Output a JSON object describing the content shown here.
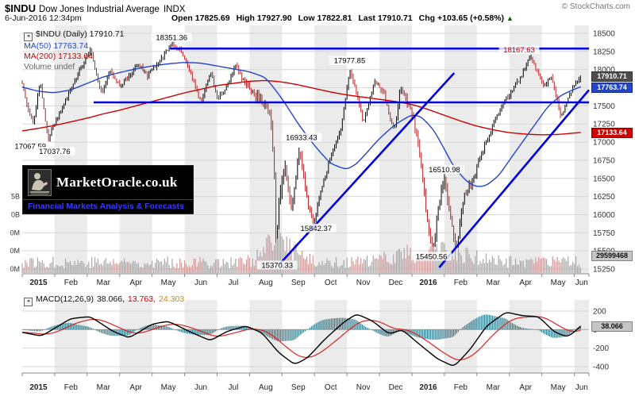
{
  "header": {
    "symbol": "$INDU",
    "name": "Dow Jones Industrial Average",
    "exchange": "INDX",
    "copyright": "© StockCharts.com",
    "datetime": "6-Jun-2016 12:34pm",
    "quote": {
      "open_label": "Open",
      "open": "17825.69",
      "high_label": "High",
      "high": "17927.90",
      "low_label": "Low",
      "low": "17822.81",
      "last_label": "Last",
      "last": "17910.71",
      "chg_label": "Chg",
      "chg": "+103.65 (+0.58%)",
      "arrow": "▲"
    }
  },
  "legend": {
    "main": "$INDU (Daily) 17910.71",
    "ma50": "MA(50) 17763.74",
    "ma200": "MA(200) 17133.64",
    "volume": "Volume undef"
  },
  "macd_legend": {
    "name": "MACD(12,26,9)",
    "macd_value": "38.066,",
    "signal_value": "13.763,",
    "hist_value": "24.303"
  },
  "value_boxes": {
    "price": "17910.71",
    "ma50": "17763.74",
    "ma200": "17133.64",
    "volume": "29599468",
    "macd": "38.066"
  },
  "logo": {
    "title": "MarketOracle.co.uk",
    "subtitle": "Financial Markets Analysis & Forecasts"
  },
  "chart_data": {
    "type": "candlestick",
    "symbol": "$INDU",
    "timeframe": "Daily",
    "x_axis_months": [
      "2015",
      "Feb",
      "Mar",
      "Apr",
      "May",
      "Jun",
      "Jul",
      "Aug",
      "Sep",
      "Oct",
      "Nov",
      "Dec",
      "2016",
      "Feb",
      "Mar",
      "Apr",
      "May",
      "Jun"
    ],
    "price_axis": {
      "ylim": [
        15250,
        18500
      ],
      "ticks": [
        18500,
        18250,
        18000,
        17750,
        17500,
        17250,
        17000,
        16750,
        16500,
        16250,
        16000,
        15750,
        15500,
        15250
      ]
    },
    "volume_axis_labels": [
      "5B",
      "0B",
      "0M",
      "0M",
      "0M"
    ],
    "price_anchors": [
      [
        0.0,
        17830
      ],
      [
        0.15,
        17500
      ],
      [
        0.35,
        17270
      ],
      [
        0.55,
        17850
      ],
      [
        0.8,
        17040
      ],
      [
        1.05,
        17300
      ],
      [
        1.5,
        17750
      ],
      [
        1.9,
        18100
      ],
      [
        2.1,
        18280
      ],
      [
        2.45,
        17660
      ],
      [
        2.7,
        18000
      ],
      [
        3.0,
        17776
      ],
      [
        3.3,
        17920
      ],
      [
        3.6,
        18080
      ],
      [
        3.85,
        17900
      ],
      [
        4.2,
        18100
      ],
      [
        4.61,
        18351
      ],
      [
        4.9,
        18250
      ],
      [
        5.15,
        18010
      ],
      [
        5.5,
        17550
      ],
      [
        5.8,
        17950
      ],
      [
        6.0,
        17620
      ],
      [
        6.3,
        17750
      ],
      [
        6.55,
        18080
      ],
      [
        6.8,
        17850
      ],
      [
        7.1,
        17690
      ],
      [
        7.4,
        17550
      ],
      [
        7.6,
        17450
      ],
      [
        7.7,
        17050
      ],
      [
        7.78,
        16400
      ],
      [
        7.82,
        15370
      ],
      [
        7.9,
        16280
      ],
      [
        8.1,
        16650
      ],
      [
        8.3,
        16050
      ],
      [
        8.55,
        16933
      ],
      [
        8.75,
        16250
      ],
      [
        8.97,
        15842
      ],
      [
        9.2,
        16350
      ],
      [
        9.5,
        16800
      ],
      [
        9.8,
        17150
      ],
      [
        10.08,
        17977
      ],
      [
        10.35,
        17600
      ],
      [
        10.5,
        17250
      ],
      [
        10.85,
        17850
      ],
      [
        11.1,
        17720
      ],
      [
        11.45,
        17150
      ],
      [
        11.65,
        17750
      ],
      [
        11.9,
        17500
      ],
      [
        12.05,
        17350
      ],
      [
        12.25,
        16800
      ],
      [
        12.45,
        16000
      ],
      [
        12.65,
        15450
      ],
      [
        12.8,
        16100
      ],
      [
        13.0,
        16510
      ],
      [
        13.2,
        15950
      ],
      [
        13.37,
        15520
      ],
      [
        13.6,
        16250
      ],
      [
        13.9,
        16516
      ],
      [
        14.2,
        16900
      ],
      [
        14.5,
        17250
      ],
      [
        14.8,
        17550
      ],
      [
        15.05,
        17685
      ],
      [
        15.35,
        17900
      ],
      [
        15.65,
        18167
      ],
      [
        15.9,
        17950
      ],
      [
        16.05,
        17773
      ],
      [
        16.3,
        17900
      ],
      [
        16.6,
        17331
      ],
      [
        16.85,
        17650
      ],
      [
        17.0,
        17787
      ],
      [
        17.2,
        17910.71
      ]
    ],
    "ma50_anchors": [
      [
        0,
        17760
      ],
      [
        0.5,
        17700
      ],
      [
        1,
        17680
      ],
      [
        1.5,
        17720
      ],
      [
        2,
        17810
      ],
      [
        2.5,
        17900
      ],
      [
        3,
        17960
      ],
      [
        3.5,
        18010
      ],
      [
        4,
        18050
      ],
      [
        4.5,
        18080
      ],
      [
        5,
        18100
      ],
      [
        5.5,
        18090
      ],
      [
        6,
        18050
      ],
      [
        6.5,
        18010
      ],
      [
        7,
        17970
      ],
      [
        7.5,
        17890
      ],
      [
        8,
        17600
      ],
      [
        8.5,
        17250
      ],
      [
        9,
        16950
      ],
      [
        9.5,
        16700
      ],
      [
        10,
        16620
      ],
      [
        10.3,
        16700
      ],
      [
        10.7,
        16900
      ],
      [
        11,
        17050
      ],
      [
        11.5,
        17250
      ],
      [
        12,
        17380
      ],
      [
        12.3,
        17350
      ],
      [
        12.7,
        17150
      ],
      [
        13,
        16900
      ],
      [
        13.3,
        16650
      ],
      [
        13.7,
        16450
      ],
      [
        14,
        16380
      ],
      [
        14.3,
        16400
      ],
      [
        14.7,
        16550
      ],
      [
        15,
        16750
      ],
      [
        15.4,
        17000
      ],
      [
        15.8,
        17250
      ],
      [
        16.2,
        17500
      ],
      [
        16.6,
        17650
      ],
      [
        17,
        17730
      ],
      [
        17.2,
        17763.74
      ]
    ],
    "ma200_anchors": [
      [
        0,
        17155
      ],
      [
        0.5,
        17190
      ],
      [
        1,
        17230
      ],
      [
        1.5,
        17280
      ],
      [
        2,
        17330
      ],
      [
        2.5,
        17390
      ],
      [
        3,
        17440
      ],
      [
        3.5,
        17500
      ],
      [
        4,
        17560
      ],
      [
        4.5,
        17620
      ],
      [
        5,
        17680
      ],
      [
        5.5,
        17730
      ],
      [
        6,
        17780
      ],
      [
        6.5,
        17810
      ],
      [
        7,
        17840
      ],
      [
        7.5,
        17850
      ],
      [
        8,
        17830
      ],
      [
        8.5,
        17790
      ],
      [
        9,
        17740
      ],
      [
        9.5,
        17690
      ],
      [
        10,
        17650
      ],
      [
        10.5,
        17620
      ],
      [
        11,
        17590
      ],
      [
        11.5,
        17560
      ],
      [
        12,
        17520
      ],
      [
        12.5,
        17450
      ],
      [
        13,
        17370
      ],
      [
        13.5,
        17290
      ],
      [
        14,
        17220
      ],
      [
        14.5,
        17170
      ],
      [
        15,
        17130
      ],
      [
        15.5,
        17110
      ],
      [
        16,
        17100
      ],
      [
        16.5,
        17105
      ],
      [
        17,
        17125
      ],
      [
        17.2,
        17133.64
      ]
    ],
    "annotations": [
      {
        "label": "18351.36",
        "t": 4.6,
        "price": 18440
      },
      {
        "label": "17977.85",
        "t": 10.08,
        "price": 18120
      },
      {
        "label": "16933.43",
        "t": 8.6,
        "price": 17060
      },
      {
        "label": "16510.98",
        "t": 13.0,
        "price": 16620
      },
      {
        "label": "15842.37",
        "t": 9.05,
        "price": 15810
      },
      {
        "label": "15370.33",
        "t": 7.85,
        "price": 15300
      },
      {
        "label": "15450.56",
        "t": 12.6,
        "price": 15420
      },
      {
        "label": "18167.63",
        "t": 15.3,
        "price": 18270,
        "color": "#cc0000"
      },
      {
        "label": "17067.59",
        "t": 0.25,
        "price": 16940
      },
      {
        "label": "17037.76",
        "t": 1.0,
        "price": 16870
      }
    ],
    "trendlines": [
      {
        "t1": 4.55,
        "p1": 18290,
        "t2": 17.45,
        "p2": 18290
      },
      {
        "t1": 2.2,
        "p1": 17548,
        "t2": 17.45,
        "p2": 17548
      },
      {
        "t1": 7.92,
        "p1": 15316,
        "t2": 13.3,
        "p2": 17953
      },
      {
        "t1": 12.84,
        "p1": 15272,
        "t2": 17.45,
        "p2": 17720
      }
    ],
    "macd": {
      "label": "MACD(12,26,9)",
      "values": [
        38.066,
        13.763,
        24.303
      ],
      "axis_ticks": [
        200,
        0,
        -200,
        -400
      ],
      "ylim": [
        -450,
        260
      ],
      "anchors": [
        [
          0,
          -30
        ],
        [
          0.6,
          -70
        ],
        [
          1.5,
          120
        ],
        [
          2.1,
          140
        ],
        [
          2.8,
          -20
        ],
        [
          3.3,
          -90
        ],
        [
          4.0,
          60
        ],
        [
          4.5,
          90
        ],
        [
          5.2,
          -30
        ],
        [
          5.8,
          -120
        ],
        [
          6.3,
          -20
        ],
        [
          6.9,
          40
        ],
        [
          7.4,
          -40
        ],
        [
          7.9,
          -250
        ],
        [
          8.4,
          -380
        ],
        [
          8.8,
          -300
        ],
        [
          9.3,
          -110
        ],
        [
          9.9,
          80
        ],
        [
          10.3,
          170
        ],
        [
          10.8,
          90
        ],
        [
          11.3,
          -50
        ],
        [
          11.7,
          0
        ],
        [
          12.2,
          -150
        ],
        [
          12.8,
          -320
        ],
        [
          13.3,
          -400
        ],
        [
          13.8,
          -210
        ],
        [
          14.3,
          40
        ],
        [
          14.9,
          190
        ],
        [
          15.4,
          150
        ],
        [
          15.9,
          140
        ],
        [
          16.4,
          -30
        ],
        [
          16.8,
          -80
        ],
        [
          17.05,
          -10
        ],
        [
          17.2,
          38.066
        ]
      ]
    },
    "colors": {
      "up": "#000000",
      "down": "#b22222",
      "ma50": "#2244cc",
      "ma200": "#cc0000",
      "trendline": "#0000dd",
      "volume_up": "#a6a6a6",
      "volume_down": "#cc9999",
      "macd_line": "#000000",
      "signal_line": "#dd2222",
      "histogram": "#337f8f",
      "stripe": "#ebebeb",
      "grid": "#d6d6d6",
      "axis_text": "#333333"
    }
  }
}
